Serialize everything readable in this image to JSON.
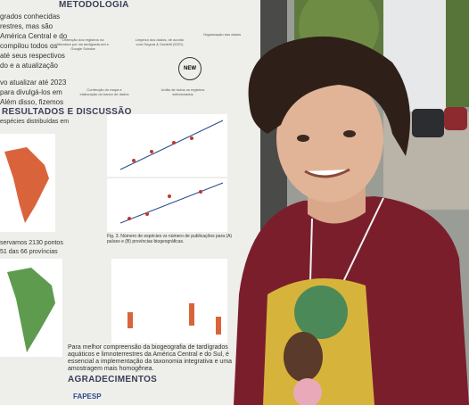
{
  "poster": {
    "intro_lines": [
      "grados conhecidas",
      "restres, mas são",
      "América Central e do",
      "compilou todos os",
      "até seus respectivos",
      "do e a atualização",
      "vo atualizar até 2023",
      "para divulgá-los em",
      "Além disso, fizemos"
    ],
    "methods_title": "METODOLOGIA",
    "method_steps": [
      "Obtenção dos registros na literatura por via tardigrada.net e Google Scholar",
      "Limpeza dos dados, de acordo com Degma & Guidetti (2021)",
      "Organização dos dados",
      "Confecção do mapa e elaboração do banco de dados",
      "União de todos os registros selecionados"
    ],
    "new_badge": "NEW",
    "results_title": "RESULTADOS E DISCUSSÃO",
    "results_lines": [
      "espécies distribuídas em",
      "servamos 2130 pontos",
      "51 das 66 províncias"
    ],
    "figure_caption": "Fig. 3. Número de espécies vs número de publicações para (A) países e (B) províncias biogeográficas.",
    "conclusion": "Para melhor compreensão da biogeografia de tardígrados aquáticos e limnoterrestres da América Central e do Sul, é essencial a implementação da taxonomia integrativa e uma amostragem mais homogênea.",
    "acknowledgements_title": "AGRADECIMENTOS",
    "sponsor": "FAPESP"
  }
}
